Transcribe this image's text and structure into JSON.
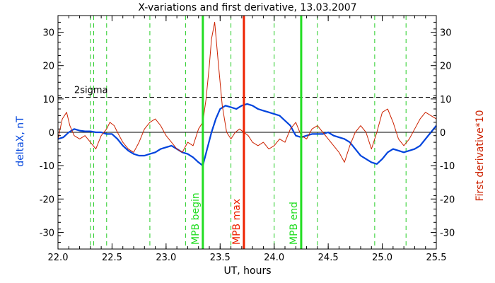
{
  "chart_data": {
    "type": "line",
    "title": "X-variations and first derivative, 13.03.2007",
    "xlabel": "UT, hours",
    "ylabel_left": "deltaX, nT",
    "ylabel_right": "First derivative*10",
    "xlim": [
      22.0,
      25.5
    ],
    "ylim": [
      -35,
      35
    ],
    "x_ticks": [
      "22.0",
      "22.5",
      "23.0",
      "23.5",
      "24.0",
      "24.5",
      "25.0",
      "25.5"
    ],
    "y_ticks": [
      "-30",
      "-20",
      "-10",
      "0",
      "10",
      "20",
      "30"
    ],
    "colors": {
      "deltaX": "#0044dd",
      "derivative": "#cc2200",
      "mpb": "#22dd22",
      "mpb_max": "#ee2200",
      "dashed_green": "#22cc22",
      "axis": "#000000"
    },
    "threshold": {
      "label": "2sigma",
      "value": 10.5
    },
    "zero_line": 0,
    "dashed_verticals": [
      22.3,
      22.33,
      22.45,
      22.85,
      23.18,
      23.6,
      24.0,
      24.4,
      24.93,
      25.22
    ],
    "markers": [
      {
        "label": "MPB begin",
        "x": 23.34,
        "color": "#22dd22"
      },
      {
        "label": "MPB max",
        "x": 23.72,
        "color": "#ee2200"
      },
      {
        "label": "MPB end",
        "x": 24.25,
        "color": "#22dd22"
      }
    ],
    "series": [
      {
        "name": "deltaX",
        "axis": "left",
        "color": "#0044dd",
        "x": [
          22.0,
          22.05,
          22.1,
          22.15,
          22.2,
          22.25,
          22.3,
          22.35,
          22.4,
          22.45,
          22.5,
          22.55,
          22.6,
          22.65,
          22.7,
          22.75,
          22.8,
          22.85,
          22.9,
          22.95,
          23.0,
          23.05,
          23.1,
          23.15,
          23.2,
          23.25,
          23.3,
          23.34,
          23.38,
          23.42,
          23.46,
          23.5,
          23.55,
          23.6,
          23.65,
          23.7,
          23.75,
          23.8,
          23.85,
          23.9,
          23.95,
          24.0,
          24.05,
          24.1,
          24.15,
          24.2,
          24.25,
          24.3,
          24.35,
          24.4,
          24.45,
          24.5,
          24.55,
          24.6,
          24.65,
          24.7,
          24.75,
          24.8,
          24.85,
          24.9,
          24.95,
          25.0,
          25.05,
          25.1,
          25.15,
          25.2,
          25.25,
          25.3,
          25.35,
          25.4,
          25.45,
          25.5
        ],
        "values": [
          -2,
          -1.5,
          0,
          1,
          0.5,
          0.3,
          0.3,
          0,
          0,
          -0.5,
          -0.5,
          -2,
          -4,
          -5.5,
          -6.5,
          -7,
          -7,
          -6.5,
          -6,
          -5,
          -4.5,
          -4,
          -5,
          -6,
          -6.5,
          -7.5,
          -9,
          -10,
          -5,
          0,
          4,
          7,
          8,
          7.5,
          7,
          8,
          8.5,
          8,
          7,
          6.5,
          6,
          5.5,
          5,
          3.5,
          2,
          -1,
          -1.5,
          -1,
          -0.5,
          -0.5,
          -0.5,
          0,
          -1,
          -1.5,
          -2,
          -3,
          -5,
          -7,
          -8,
          -9,
          -9.5,
          -8,
          -6,
          -5,
          -5.5,
          -6,
          -5.5,
          -5,
          -4,
          -2,
          0,
          2
        ]
      },
      {
        "name": "First derivative*10",
        "axis": "right",
        "color": "#cc2200",
        "x": [
          22.0,
          22.04,
          22.08,
          22.11,
          22.15,
          22.2,
          22.25,
          22.3,
          22.35,
          22.4,
          22.45,
          22.48,
          22.52,
          22.55,
          22.6,
          22.65,
          22.7,
          22.75,
          22.8,
          22.85,
          22.9,
          22.95,
          23.0,
          23.05,
          23.1,
          23.15,
          23.2,
          23.25,
          23.3,
          23.34,
          23.37,
          23.4,
          23.42,
          23.45,
          23.48,
          23.52,
          23.56,
          23.6,
          23.64,
          23.68,
          23.72,
          23.76,
          23.8,
          23.85,
          23.9,
          23.95,
          24.0,
          24.05,
          24.1,
          24.15,
          24.2,
          24.25,
          24.3,
          24.35,
          24.4,
          24.45,
          24.5,
          24.55,
          24.6,
          24.65,
          24.7,
          24.75,
          24.8,
          24.85,
          24.9,
          24.95,
          25.0,
          25.05,
          25.1,
          25.15,
          25.2,
          25.25,
          25.3,
          25.35,
          25.4,
          25.45,
          25.5
        ],
        "values": [
          -2,
          4,
          6,
          2,
          -1,
          -2,
          -1,
          -3,
          -5,
          -1,
          1,
          3,
          2,
          0,
          -3,
          -5,
          -6,
          -3,
          1,
          3,
          4,
          2,
          -1,
          -3,
          -5,
          -6,
          -3,
          -4,
          1,
          3,
          10,
          20,
          28,
          33,
          22,
          8,
          0,
          -2,
          0,
          1,
          0,
          -1,
          -3,
          -4,
          -3,
          -5,
          -4,
          -2,
          -3,
          1,
          3,
          -1,
          -2,
          1,
          2,
          0,
          -2,
          -4,
          -6,
          -9,
          -4,
          0,
          2,
          0,
          -5,
          0,
          6,
          7,
          3,
          -2,
          -4,
          -2,
          1,
          4,
          6,
          5,
          4
        ]
      }
    ]
  }
}
